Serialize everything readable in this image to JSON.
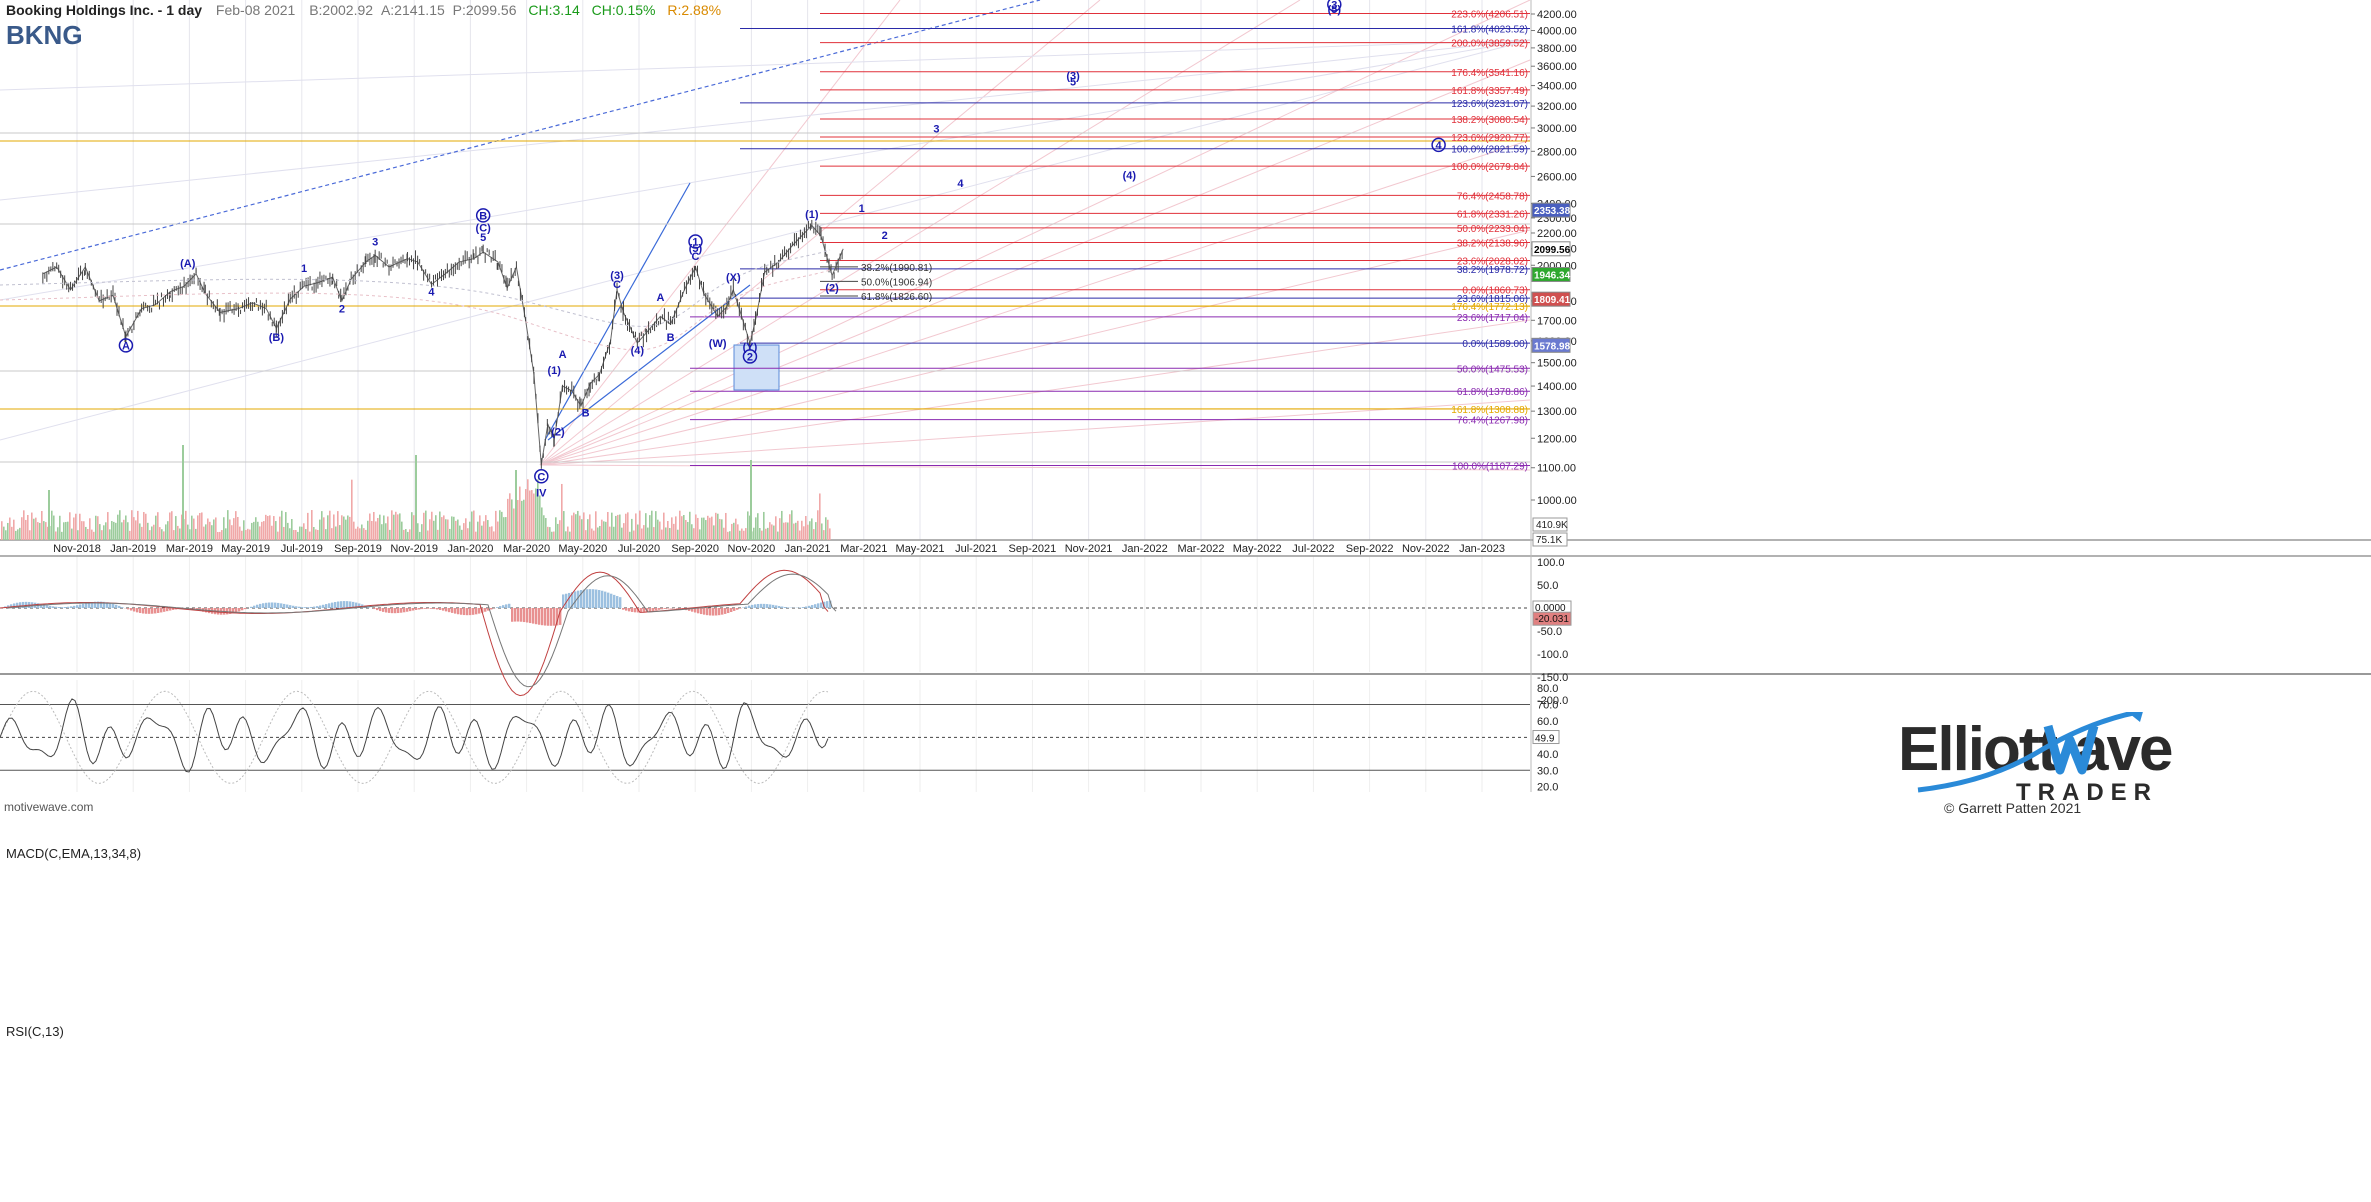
{
  "header": {
    "title": "Booking Holdings Inc. - 1 day",
    "date": "Feb-08 2021",
    "bid": "B:2002.92",
    "ask": "A:2141.15",
    "price": "P:2099.56",
    "change": "CH:3.14",
    "change_pct": "CH:0.15%",
    "range": "R:2.88%"
  },
  "ticker": "BKNG",
  "watermark": "motivewave.com",
  "logo_text": "ElliottWave TRADER",
  "copyright": "© Garrett Patten 2021",
  "chart_data": {
    "type": "line",
    "price_axis": {
      "min": 1000,
      "max": 4400,
      "ticks": [
        "1000.00",
        "1100.00",
        "1200.00",
        "1300.00",
        "1400.00",
        "1500.00",
        "1600.00",
        "1700.00",
        "1800.00",
        "2000.00",
        "2100.00",
        "2200.00",
        "2300.00",
        "2400.00",
        "2600.00",
        "2800.00",
        "3000.00",
        "3200.00",
        "3400.00",
        "3600.00",
        "3800.00",
        "4000.00",
        "4200.00"
      ]
    },
    "time_axis": [
      "Nov-2018",
      "Jan-2019",
      "Mar-2019",
      "May-2019",
      "Jul-2019",
      "Sep-2019",
      "Nov-2019",
      "Jan-2020",
      "Mar-2020",
      "May-2020",
      "Jul-2020",
      "Sep-2020",
      "Nov-2020",
      "Jan-2021",
      "Mar-2021",
      "May-2021",
      "Jul-2021",
      "Sep-2021",
      "Nov-2021",
      "Jan-2022",
      "Mar-2022",
      "May-2022",
      "Jul-2022",
      "Sep-2022",
      "Nov-2022",
      "Jan-2023"
    ],
    "price_series": [
      [
        "2018-09-25",
        1950
      ],
      [
        "2018-10-10",
        1990
      ],
      [
        "2018-10-25",
        1860
      ],
      [
        "2018-11-10",
        1990
      ],
      [
        "2018-11-25",
        1800
      ],
      [
        "2018-12-10",
        1830
      ],
      [
        "2018-12-24",
        1620
      ],
      [
        "2019-01-10",
        1760
      ],
      [
        "2019-01-25",
        1780
      ],
      [
        "2019-02-10",
        1850
      ],
      [
        "2019-02-25",
        1880
      ],
      [
        "2019-03-10",
        1950
      ],
      [
        "2019-03-20",
        1840
      ],
      [
        "2019-04-05",
        1740
      ],
      [
        "2019-04-25",
        1760
      ],
      [
        "2019-05-10",
        1790
      ],
      [
        "2019-05-25",
        1760
      ],
      [
        "2019-06-05",
        1660
      ],
      [
        "2019-06-20",
        1810
      ],
      [
        "2019-07-05",
        1880
      ],
      [
        "2019-07-20",
        1900
      ],
      [
        "2019-08-05",
        1930
      ],
      [
        "2019-08-15",
        1800
      ],
      [
        "2019-08-25",
        1920
      ],
      [
        "2019-09-10",
        2020
      ],
      [
        "2019-09-20",
        2060
      ],
      [
        "2019-10-05",
        1990
      ],
      [
        "2019-10-25",
        2040
      ],
      [
        "2019-11-05",
        2020
      ],
      [
        "2019-11-20",
        1890
      ],
      [
        "2019-12-05",
        1950
      ],
      [
        "2019-12-20",
        2020
      ],
      [
        "2020-01-05",
        2040
      ],
      [
        "2020-01-15",
        2080
      ],
      [
        "2020-01-31",
        2020
      ],
      [
        "2020-02-10",
        1870
      ],
      [
        "2020-02-20",
        1990
      ],
      [
        "2020-03-01",
        1700
      ],
      [
        "2020-03-10",
        1450
      ],
      [
        "2020-03-18",
        1110
      ],
      [
        "2020-03-25",
        1250
      ],
      [
        "2020-04-01",
        1200
      ],
      [
        "2020-04-10",
        1400
      ],
      [
        "2020-04-20",
        1380
      ],
      [
        "2020-04-30",
        1320
      ],
      [
        "2020-05-10",
        1410
      ],
      [
        "2020-05-20",
        1450
      ],
      [
        "2020-06-01",
        1600
      ],
      [
        "2020-06-08",
        1860
      ],
      [
        "2020-06-15",
        1740
      ],
      [
        "2020-06-30",
        1590
      ],
      [
        "2020-07-10",
        1640
      ],
      [
        "2020-07-25",
        1720
      ],
      [
        "2020-08-05",
        1680
      ],
      [
        "2020-08-20",
        1860
      ],
      [
        "2020-09-01",
        1990
      ],
      [
        "2020-09-10",
        1840
      ],
      [
        "2020-09-25",
        1720
      ],
      [
        "2020-10-05",
        1770
      ],
      [
        "2020-10-12",
        1860
      ],
      [
        "2020-10-30",
        1590
      ],
      [
        "2020-11-05",
        1700
      ],
      [
        "2020-11-15",
        1960
      ],
      [
        "2020-11-30",
        2020
      ],
      [
        "2020-12-15",
        2120
      ],
      [
        "2021-01-05",
        2250
      ],
      [
        "2021-01-15",
        2180
      ],
      [
        "2021-01-27",
        1940
      ],
      [
        "2021-02-08",
        2099.56
      ]
    ],
    "fib_levels": [
      {
        "label": "223.6%(4206.51)",
        "value": 4206.51,
        "color": "#e0303a"
      },
      {
        "label": "161.8%(4023.52)",
        "value": 4023.52,
        "color": "#2a2aa8"
      },
      {
        "label": "200.0%(3859.52)",
        "value": 3859.52,
        "color": "#e0303a"
      },
      {
        "label": "176.4%(3541.16)",
        "value": 3541.16,
        "color": "#e0303a"
      },
      {
        "label": "161.8%(3357.49)",
        "value": 3357.49,
        "color": "#e0303a"
      },
      {
        "label": "123.6%(3231.07)",
        "value": 3231.07,
        "color": "#2a2aa8"
      },
      {
        "label": "138.2%(3080.54)",
        "value": 3080.54,
        "color": "#e0303a"
      },
      {
        "label": "123.6%(2920.77)",
        "value": 2920.77,
        "color": "#e0303a"
      },
      {
        "label": "100.0%(2821.59)",
        "value": 2821.59,
        "color": "#2a2aa8"
      },
      {
        "label": "100.0%(2679.84)",
        "value": 2679.84,
        "color": "#e0303a"
      },
      {
        "label": "76.4%(2458.78)",
        "value": 2458.78,
        "color": "#e0303a"
      },
      {
        "label": "61.8%(2331.26)",
        "value": 2331.26,
        "color": "#e0303a"
      },
      {
        "label": "50.0%(2233.04)",
        "value": 2233.04,
        "color": "#e0303a"
      },
      {
        "label": "38.2%(2138.96)",
        "value": 2138.96,
        "color": "#e0303a"
      },
      {
        "label": "23.6%(2028.02)",
        "value": 2028.02,
        "color": "#e0303a"
      },
      {
        "label": "38.2%(1978.72)",
        "value": 1978.72,
        "color": "#2a2aa8"
      },
      {
        "label": "0.0%(1860.73)",
        "value": 1860.73,
        "color": "#e0303a"
      },
      {
        "label": "23.6%(1815.06)",
        "value": 1815.06,
        "color": "#2a2aa8"
      },
      {
        "label": "176.4%(1772.13)",
        "value": 1772.13,
        "color": "#e3a800"
      },
      {
        "label": "23.6%(1717.04)",
        "value": 1717.04,
        "color": "#8a2ab0"
      },
      {
        "label": "0.0%(1589.00)",
        "value": 1589.0,
        "color": "#2a2aa8"
      },
      {
        "label": "50.0%(1475.53)",
        "value": 1475.53,
        "color": "#8a2ab0"
      },
      {
        "label": "61.8%(1378.86)",
        "value": 1378.86,
        "color": "#8a2ab0"
      },
      {
        "label": "161.8%(1308.88)",
        "value": 1308.88,
        "color": "#e3a800"
      },
      {
        "label": "76.4%(1267.98)",
        "value": 1267.98,
        "color": "#8a2ab0"
      },
      {
        "label": "100.0%(1107.29)",
        "value": 1107.29,
        "color": "#8a2ab0"
      }
    ],
    "inner_fibs": [
      {
        "label": "38.2%(1990.81)",
        "value": 1990.81
      },
      {
        "label": "50.0%(1906.94)",
        "value": 1906.94
      },
      {
        "label": "61.8%(1826.60)",
        "value": 1826.6
      }
    ],
    "price_badges": [
      {
        "label": "2353.38",
        "value": 2353.38,
        "bg": "#4a5fbf",
        "fg": "#ffffff"
      },
      {
        "label": "2099.56",
        "value": 2099.56,
        "bg": "#ffffff",
        "fg": "#000000"
      },
      {
        "label": "1946.34",
        "value": 1946.34,
        "bg": "#2ea82e",
        "fg": "#ffffff"
      },
      {
        "label": "1809.41",
        "value": 1809.41,
        "bg": "#d05050",
        "fg": "#ffffff"
      },
      {
        "label": "1578.98",
        "value": 1578.98,
        "bg": "#6a7ad0",
        "fg": "#ffffff"
      }
    ],
    "volume_badges": [
      "410.9K",
      "75.1K"
    ],
    "wave_labels": [
      {
        "text": "(A)",
        "date": "2019-03-01",
        "y": 1990
      },
      {
        "text": "A",
        "date": "2018-12-24",
        "y": 1560,
        "circle": true
      },
      {
        "text": "1",
        "date": "2019-07-05",
        "y": 1960
      },
      {
        "text": "2",
        "date": "2019-08-15",
        "y": 1740
      },
      {
        "text": "(B)",
        "date": "2019-06-05",
        "y": 1600
      },
      {
        "text": "3",
        "date": "2019-09-20",
        "y": 2120
      },
      {
        "text": "4",
        "date": "2019-11-20",
        "y": 1830
      },
      {
        "text": "5",
        "date": "2020-01-15",
        "y": 2150
      },
      {
        "text": "(C)",
        "date": "2020-01-15",
        "y": 2210
      },
      {
        "text": "B",
        "date": "2020-01-15",
        "y": 2290,
        "circle": true
      },
      {
        "text": "C",
        "date": "2020-03-18",
        "y": 1060,
        "circle": true
      },
      {
        "text": "IV",
        "date": "2020-03-18",
        "y": 1010
      },
      {
        "text": "(1)",
        "date": "2020-04-01",
        "y": 1450
      },
      {
        "text": "A",
        "date": "2020-04-10",
        "y": 1520
      },
      {
        "text": "(2)",
        "date": "2020-04-05",
        "y": 1210
      },
      {
        "text": "B",
        "date": "2020-05-05",
        "y": 1280
      },
      {
        "text": "(3)",
        "date": "2020-06-08",
        "y": 1920
      },
      {
        "text": "C",
        "date": "2020-06-08",
        "y": 1870
      },
      {
        "text": "(4)",
        "date": "2020-06-30",
        "y": 1540
      },
      {
        "text": "A",
        "date": "2020-07-25",
        "y": 1800
      },
      {
        "text": "B",
        "date": "2020-08-05",
        "y": 1600
      },
      {
        "text": "1",
        "date": "2020-09-01",
        "y": 2120,
        "circle": true
      },
      {
        "text": "(5)",
        "date": "2020-09-01",
        "y": 2080
      },
      {
        "text": "C",
        "date": "2020-09-01",
        "y": 2030
      },
      {
        "text": "(X)",
        "date": "2020-10-12",
        "y": 1910
      },
      {
        "text": "(W)",
        "date": "2020-09-25",
        "y": 1570
      },
      {
        "text": "(Y)",
        "date": "2020-10-30",
        "y": 1555
      },
      {
        "text": "2",
        "date": "2020-10-30",
        "y": 1510,
        "circle": true
      },
      {
        "text": "(1)",
        "date": "2021-01-05",
        "y": 2300
      },
      {
        "text": "(2)",
        "date": "2021-01-27",
        "y": 1850
      },
      {
        "text": "1",
        "date": "2021-02-28",
        "y": 2340
      },
      {
        "text": "2",
        "date": "2021-03-25",
        "y": 2160
      },
      {
        "text": "3",
        "date": "2021-05-20",
        "y": 2960
      },
      {
        "text": "4",
        "date": "2021-06-15",
        "y": 2520
      },
      {
        "text": "(3)",
        "date": "2021-10-15",
        "y": 3460
      },
      {
        "text": "5",
        "date": "2021-10-15",
        "y": 3400
      },
      {
        "text": "(4)",
        "date": "2021-12-15",
        "y": 2580
      },
      {
        "text": "3",
        "date": "2022-07-25",
        "y": 4270,
        "circle": true
      },
      {
        "text": "(5)",
        "date": "2022-07-25",
        "y": 4210
      },
      {
        "text": "4",
        "date": "2022-11-15",
        "y": 2820,
        "circle": true
      }
    ],
    "macd": {
      "title": "MACD(C,EMA,13,34,8)",
      "ticks": [
        "100.0",
        "50.0",
        "-50.0",
        "-100.0",
        "-150.0",
        "-200.0"
      ],
      "badges": [
        "0.0000",
        "-20.031"
      ]
    },
    "rsi": {
      "title": "RSI(C,13)",
      "ticks": [
        "80.0",
        "70.0",
        "60.0",
        "50.0",
        "40.0",
        "30.0",
        "20.0"
      ],
      "badge": "49.9"
    }
  }
}
